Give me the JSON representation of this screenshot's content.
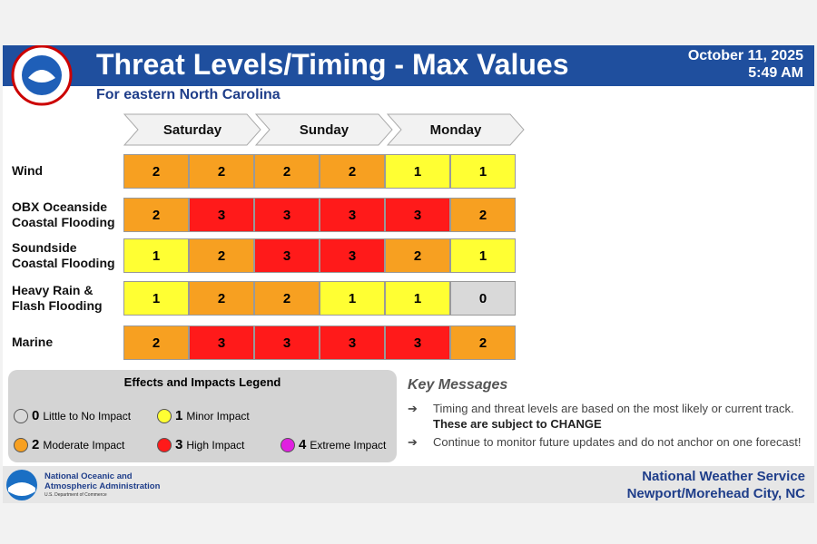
{
  "header": {
    "title": "Threat Levels/Timing - Max Values",
    "subtitle": "For eastern North Carolina",
    "date": "October 11, 2025",
    "time": "5:49 AM"
  },
  "days": [
    "Saturday",
    "Sunday",
    "Monday"
  ],
  "rows": [
    {
      "label": [
        "Wind"
      ],
      "values": [
        2,
        2,
        2,
        2,
        1,
        1
      ]
    },
    {
      "label": [
        "OBX Oceanside",
        "Coastal Flooding"
      ],
      "values": [
        2,
        3,
        3,
        3,
        3,
        2
      ]
    },
    {
      "label": [
        "Soundside",
        "Coastal Flooding"
      ],
      "values": [
        1,
        2,
        3,
        3,
        2,
        1
      ]
    },
    {
      "label": [
        "Heavy Rain &",
        "Flash Flooding"
      ],
      "values": [
        1,
        2,
        2,
        1,
        1,
        0
      ]
    },
    {
      "label": [
        "Marine"
      ],
      "values": [
        2,
        3,
        3,
        3,
        3,
        2
      ]
    }
  ],
  "legend": {
    "title": "Effects and Impacts Legend",
    "items": [
      {
        "level": 0,
        "label": "Little to No Impact",
        "color": "#d9d9d9"
      },
      {
        "level": 1,
        "label": "Minor Impact",
        "color": "#ffff33"
      },
      {
        "level": 2,
        "label": "Moderate Impact",
        "color": "#f7a021"
      },
      {
        "level": 3,
        "label": "High Impact",
        "color": "#ff1a1a"
      },
      {
        "level": 4,
        "label": "Extreme Impact",
        "color": "#e020e0"
      }
    ]
  },
  "key_messages": {
    "title": "Key Messages",
    "items": [
      {
        "text": "Timing and threat levels are based on the most likely or current track.",
        "emphasis": "These are subject to CHANGE"
      },
      {
        "text": "Continue to monitor future updates and do not anchor on one forecast!"
      }
    ]
  },
  "footer": {
    "agency": [
      "National Oceanic and",
      "Atmospheric Administration"
    ],
    "department": "U.S. Department of Commerce",
    "office": [
      "National Weather Service",
      "Newport/Morehead City, NC"
    ]
  }
}
